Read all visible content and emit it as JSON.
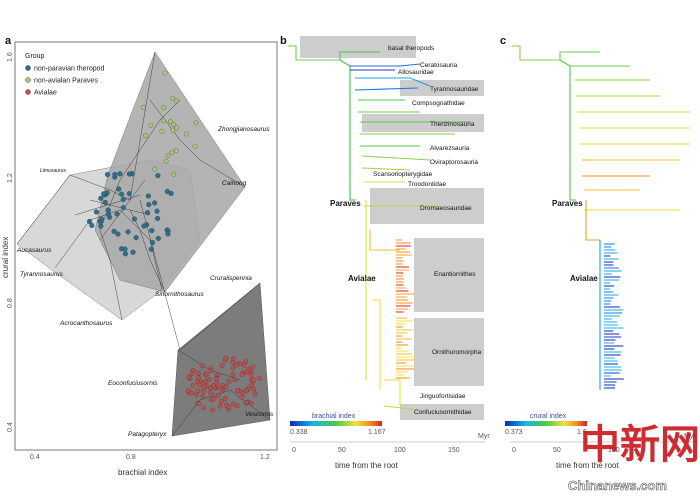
{
  "panels": {
    "a": "a",
    "b": "b",
    "c": "c"
  },
  "chart_data": [
    {
      "type": "scatter",
      "panel": "a",
      "xlabel": "brachial index",
      "ylabel": "crural index",
      "xlim": [
        0.3,
        1.25
      ],
      "ylim": [
        0.35,
        1.65
      ],
      "x_ticks": [
        "0.4",
        "0.8",
        "1.2"
      ],
      "y_ticks": [
        "0.4",
        "0.8",
        "1.2",
        "1.6"
      ],
      "legend": {
        "title": "Group",
        "entries": [
          "non-paravian theropod",
          "non-avialan Paraves",
          "Avialae"
        ]
      },
      "colors": {
        "non_paravian": "#2e6f8e",
        "paraves": "#a8c878",
        "avialae": "#c0504d"
      },
      "labelled_taxa": [
        {
          "name": "Zhongjianosaurus",
          "x": 1.05,
          "y": 1.3
        },
        {
          "name": "Limusaurus",
          "x": 0.48,
          "y": 1.15
        },
        {
          "name": "Caihong",
          "x": 1.13,
          "y": 1.12
        },
        {
          "name": "Aucasaurus",
          "x": 0.31,
          "y": 0.98
        },
        {
          "name": "Tyrannosaurus",
          "x": 0.46,
          "y": 0.91
        },
        {
          "name": "Sinornithosaurus",
          "x": 0.88,
          "y": 0.92
        },
        {
          "name": "Acrocanthosaurus",
          "x": 0.66,
          "y": 0.77
        },
        {
          "name": "Cruralispennia",
          "x": 1.17,
          "y": 0.86
        },
        {
          "name": "Eoconfuciusornis",
          "x": 0.85,
          "y": 0.53
        },
        {
          "name": "Vescornis",
          "x": 1.16,
          "y": 0.47
        },
        {
          "name": "Patagopteryx",
          "x": 0.82,
          "y": 0.4
        }
      ]
    },
    {
      "type": "tree",
      "panel": "b",
      "xlabel": "time from the root",
      "x_unit": "Myr",
      "x_ticks": [
        "0",
        "50",
        "100",
        "150"
      ],
      "colorbar": {
        "label": "brachial index",
        "min": "0.338",
        "max": "1.167"
      },
      "clades": [
        "basal theropods",
        "Ceratosauria",
        "Allosauridae",
        "Tyrannosauridae",
        "Compsognathidae",
        "Therizinosauria",
        "Alvarezsauria",
        "Oviraptorosauria",
        "Scansoriopterygidae",
        "Troodontidae",
        "Dromaeosauridae",
        "Enantiornithes",
        "Ornithuromorpha",
        "Jinguofortisidae",
        "Confuciusornithidae"
      ],
      "major_labels": [
        "Paraves",
        "Avialae"
      ]
    },
    {
      "type": "tree",
      "panel": "c",
      "xlabel": "time from the root",
      "x_unit": "Myr",
      "x_ticks": [
        "0",
        "50",
        "100"
      ],
      "colorbar": {
        "label": "crural index",
        "min": "0.373",
        "max": "1.6"
      },
      "major_labels": [
        "Paraves",
        "Avialae"
      ]
    }
  ],
  "watermark": {
    "characters": "中新网",
    "site": "Chinanews.com"
  }
}
